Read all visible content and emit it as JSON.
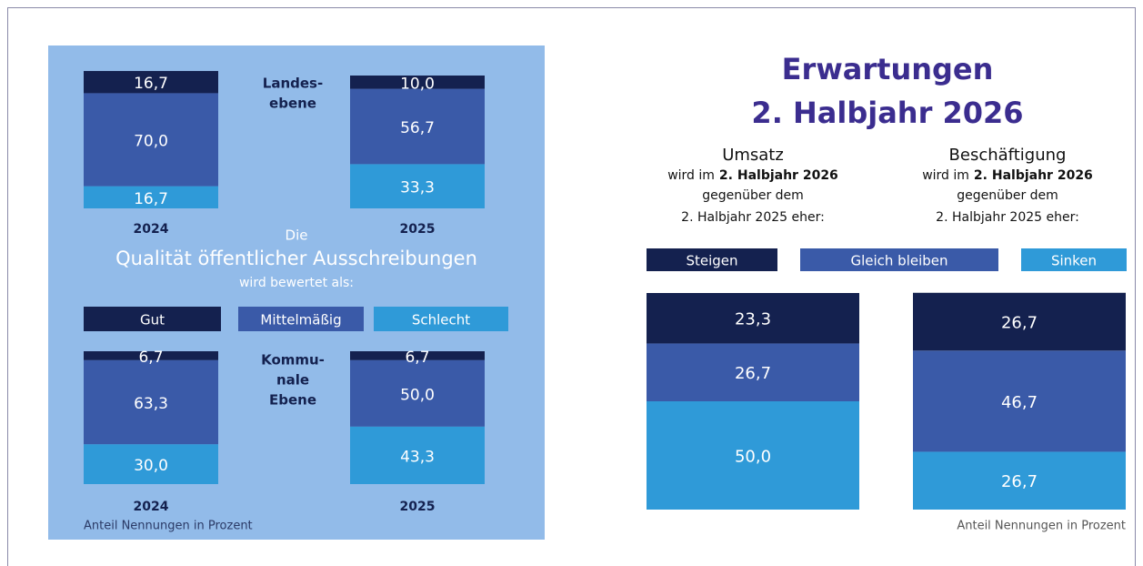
{
  "chart_data": [
    {
      "type": "stacked_bar",
      "label": [
        "Landes-",
        "ebene"
      ],
      "categories": [
        "2024",
        "2025"
      ],
      "series": [
        {
          "name": "Gut",
          "color": "#14214f",
          "values": [
            16.7,
            10.0
          ],
          "value_labels": [
            "16,7",
            "10,0"
          ]
        },
        {
          "name": "Mittelmäßig",
          "color": "#3a5aa8",
          "values": [
            70.0,
            56.7
          ],
          "value_labels": [
            "70,0",
            "56,7"
          ]
        },
        {
          "name": "Schlecht",
          "color": "#2f9ad8",
          "values": [
            16.7,
            33.3
          ],
          "value_labels": [
            "16,7",
            "33,3"
          ]
        }
      ],
      "title": [
        "Die",
        "Qualität öffentlicher Ausschreibungen",
        "wird bewertet als:"
      ]
    },
    {
      "type": "stacked_bar",
      "label": [
        "Kommu-",
        "nale",
        "Ebene"
      ],
      "categories": [
        "2024",
        "2025"
      ],
      "series": [
        {
          "color": "#14214f",
          "values": [
            6.7,
            6.7
          ],
          "value_labels": [
            "6,7",
            "6,7"
          ]
        },
        {
          "color": "#3a5aa8",
          "values": [
            63.3,
            50.0
          ],
          "value_labels": [
            "63,3",
            "50,0"
          ]
        },
        {
          "color": "#2f9ad8",
          "values": [
            30.0,
            43.3
          ],
          "value_labels": [
            "30,0",
            "43,3"
          ]
        }
      ],
      "note": "Anteil Nennungen in Prozent"
    },
    {
      "type": "stacked_bar",
      "title": [
        "Erwartungen",
        "2. Halbjahr 2026"
      ],
      "categories": [
        "Umsatz",
        "Beschäftigung"
      ],
      "category_subtitles": [
        {
          "prefix": "wird im",
          "bold": "2. Halbjahr 2026",
          "lines": [
            "gegenüber dem",
            "2. Halbjahr 2025 eher:"
          ]
        },
        {
          "prefix": "wird im",
          "bold": "2. Halbjahr 2026",
          "lines": [
            "gegenüber dem",
            "2. Halbjahr 2025 eher:"
          ]
        }
      ],
      "series": [
        {
          "name": "Steigen",
          "color": "#14214f",
          "values": [
            23.3,
            26.7
          ],
          "value_labels": [
            "23,3",
            "26,7"
          ]
        },
        {
          "name": "Gleich bleiben",
          "color": "#3a5aa8",
          "values": [
            26.7,
            46.7
          ],
          "value_labels": [
            "26,7",
            "46,7"
          ]
        },
        {
          "name": "Sinken",
          "color": "#2f9ad8",
          "values": [
            50.0,
            26.7
          ],
          "value_labels": [
            "50,0",
            "26,7"
          ]
        }
      ],
      "note": "Anteil Nennungen in Prozent"
    }
  ]
}
